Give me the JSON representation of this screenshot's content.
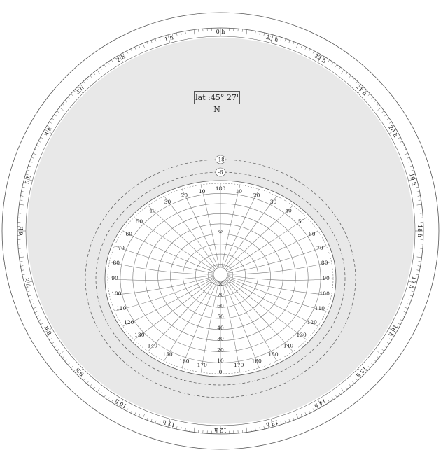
{
  "latitude_label": "lat :45° 27' N",
  "hour_labels": [
    "0 h",
    "1 h",
    "2 h",
    "3 h",
    "4 h",
    "5 h",
    "6 h",
    "7 h",
    "8 h",
    "9 h",
    "10 h",
    "11 h",
    "12 h",
    "13 h",
    "14 h",
    "15 h",
    "16 h",
    "17 h",
    "18 h",
    "19 h",
    "20 h",
    "21 h",
    "22 h",
    "23 h"
  ],
  "twilight_labels": [
    "-18",
    "-6"
  ],
  "azimuth_labels": [
    "0",
    "10",
    "20",
    "30",
    "40",
    "50",
    "60",
    "70",
    "80",
    "90",
    "100",
    "110",
    "120",
    "130",
    "140",
    "150",
    "160",
    "170",
    "180"
  ],
  "altitude_labels": [
    "0",
    "10",
    "20",
    "30",
    "40",
    "50",
    "60",
    "70",
    "80"
  ],
  "zenith_marker": "⊙",
  "colors": {
    "sky_fill": "#e8e8e8",
    "line": "#555555",
    "grid": "#777777",
    "background": "#ffffff"
  }
}
